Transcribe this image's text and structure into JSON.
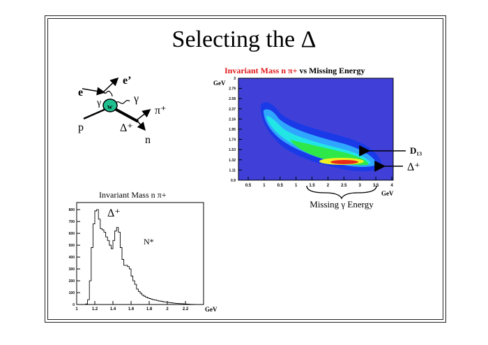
{
  "slide": {
    "title": "Selecting the Δ"
  },
  "feynman": {
    "labels": {
      "e": "e",
      "e_prime": "e’",
      "gamma1": "γ",
      "gamma2": "γ",
      "w": "w",
      "pi": "π⁺",
      "p": "p",
      "delta": "Δ⁺",
      "n": "n"
    },
    "vertex_color": "#1fbf8f"
  },
  "chart_data": [
    {
      "type": "heatmap",
      "title_part_red": "Invariant Mass n π+",
      "title_part_black": " vs Missing Energy",
      "ylabel": "GeV",
      "xlabel": "GeV",
      "y_ticks": [
        "0.9",
        "1.11",
        "1.32",
        "1.53",
        "1.74",
        "1.95",
        "2.16",
        "2.37",
        "2.58",
        "2.79",
        "3"
      ],
      "x_ticks": [
        "0.5",
        "1",
        "0.5",
        "1",
        "1.5",
        "2",
        "2.5",
        "3",
        "3.5",
        "4"
      ],
      "annotations": {
        "d13": "D₁₃",
        "delta": "Δ⁺",
        "missing": "Missing γ Energy"
      },
      "colors": {
        "background": "#4040d8",
        "blue": "#1a3ae8",
        "lightblue": "#2fa6ff",
        "cyan": "#22e6e6",
        "green": "#2ee84a",
        "yellow": "#f0f020",
        "red": "#e82a1a"
      }
    },
    {
      "type": "histogram",
      "title": "Invariant Mass n π+",
      "xlabel": "GeV",
      "x_ticks": [
        1,
        1.2,
        1.4,
        1.6,
        1.8,
        2,
        2.2
      ],
      "y_ticks": [
        0,
        100,
        200,
        300,
        400,
        500,
        600,
        700,
        800
      ],
      "xlim": [
        1.0,
        2.4
      ],
      "ylim": [
        0,
        860
      ],
      "annotations": {
        "delta": "Δ⁺",
        "nstar": "N*"
      },
      "bin_width": 0.02,
      "x_start": 1.1,
      "values": [
        5,
        40,
        200,
        480,
        680,
        790,
        800,
        720,
        640,
        630,
        610,
        570,
        540,
        500,
        470,
        540,
        620,
        650,
        610,
        480,
        380,
        330,
        330,
        320,
        300,
        240,
        200,
        170,
        130,
        110,
        95,
        80,
        70,
        62,
        55,
        50,
        45,
        40,
        38,
        34,
        30,
        28,
        25,
        22,
        20,
        18,
        16,
        14,
        12,
        10,
        9,
        8,
        7,
        6,
        5,
        4,
        3,
        2,
        1,
        1
      ]
    }
  ]
}
